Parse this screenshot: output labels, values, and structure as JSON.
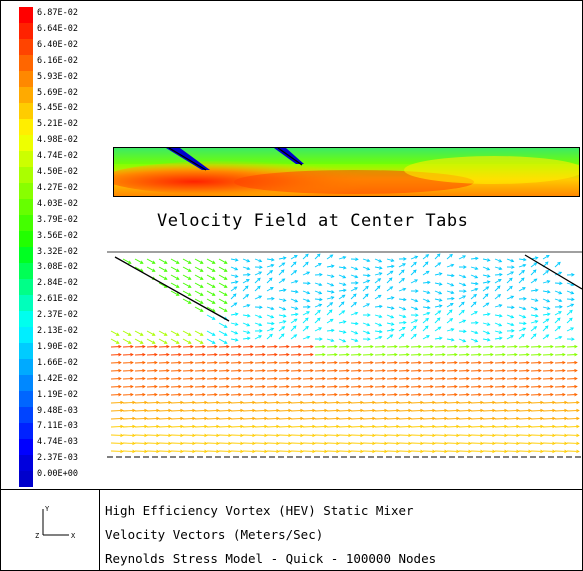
{
  "legend": {
    "labels": [
      "6.87E-02",
      "6.64E-02",
      "6.40E-02",
      "6.16E-02",
      "5.93E-02",
      "5.69E-02",
      "5.45E-02",
      "5.21E-02",
      "4.98E-02",
      "4.74E-02",
      "4.50E-02",
      "4.27E-02",
      "4.03E-02",
      "3.79E-02",
      "3.56E-02",
      "3.32E-02",
      "3.08E-02",
      "2.84E-02",
      "2.61E-02",
      "2.37E-02",
      "2.13E-02",
      "1.90E-02",
      "1.66E-02",
      "1.42E-02",
      "1.19E-02",
      "9.48E-03",
      "7.11E-03",
      "4.74E-03",
      "2.37E-03",
      "0.00E+00"
    ],
    "colors": [
      "#ff0000",
      "#ff2200",
      "#ff4400",
      "#ff6600",
      "#ff8800",
      "#ffaa00",
      "#ffcc00",
      "#ffee00",
      "#eeff00",
      "#ccff00",
      "#aaff00",
      "#88ff00",
      "#66ff00",
      "#44ff00",
      "#22ff00",
      "#00ff22",
      "#00ff55",
      "#00ff88",
      "#00ffbb",
      "#00ffee",
      "#00eeff",
      "#00ccff",
      "#00aaff",
      "#0088ff",
      "#0066ff",
      "#0044ff",
      "#0022ff",
      "#0000ff",
      "#0000dd",
      "#0000cc"
    ]
  },
  "field": {
    "title": "Velocity Field at Center Tabs"
  },
  "axis_triad": {
    "y_label": "Y",
    "z_label": "Z",
    "x_label": "X"
  },
  "footer": {
    "line1": "High Efficiency Vortex (HEV) Static Mixer",
    "line2": "Velocity Vectors (Meters/Sec)",
    "line3": "Reynolds Stress Model - Quick - 100000 Nodes"
  }
}
